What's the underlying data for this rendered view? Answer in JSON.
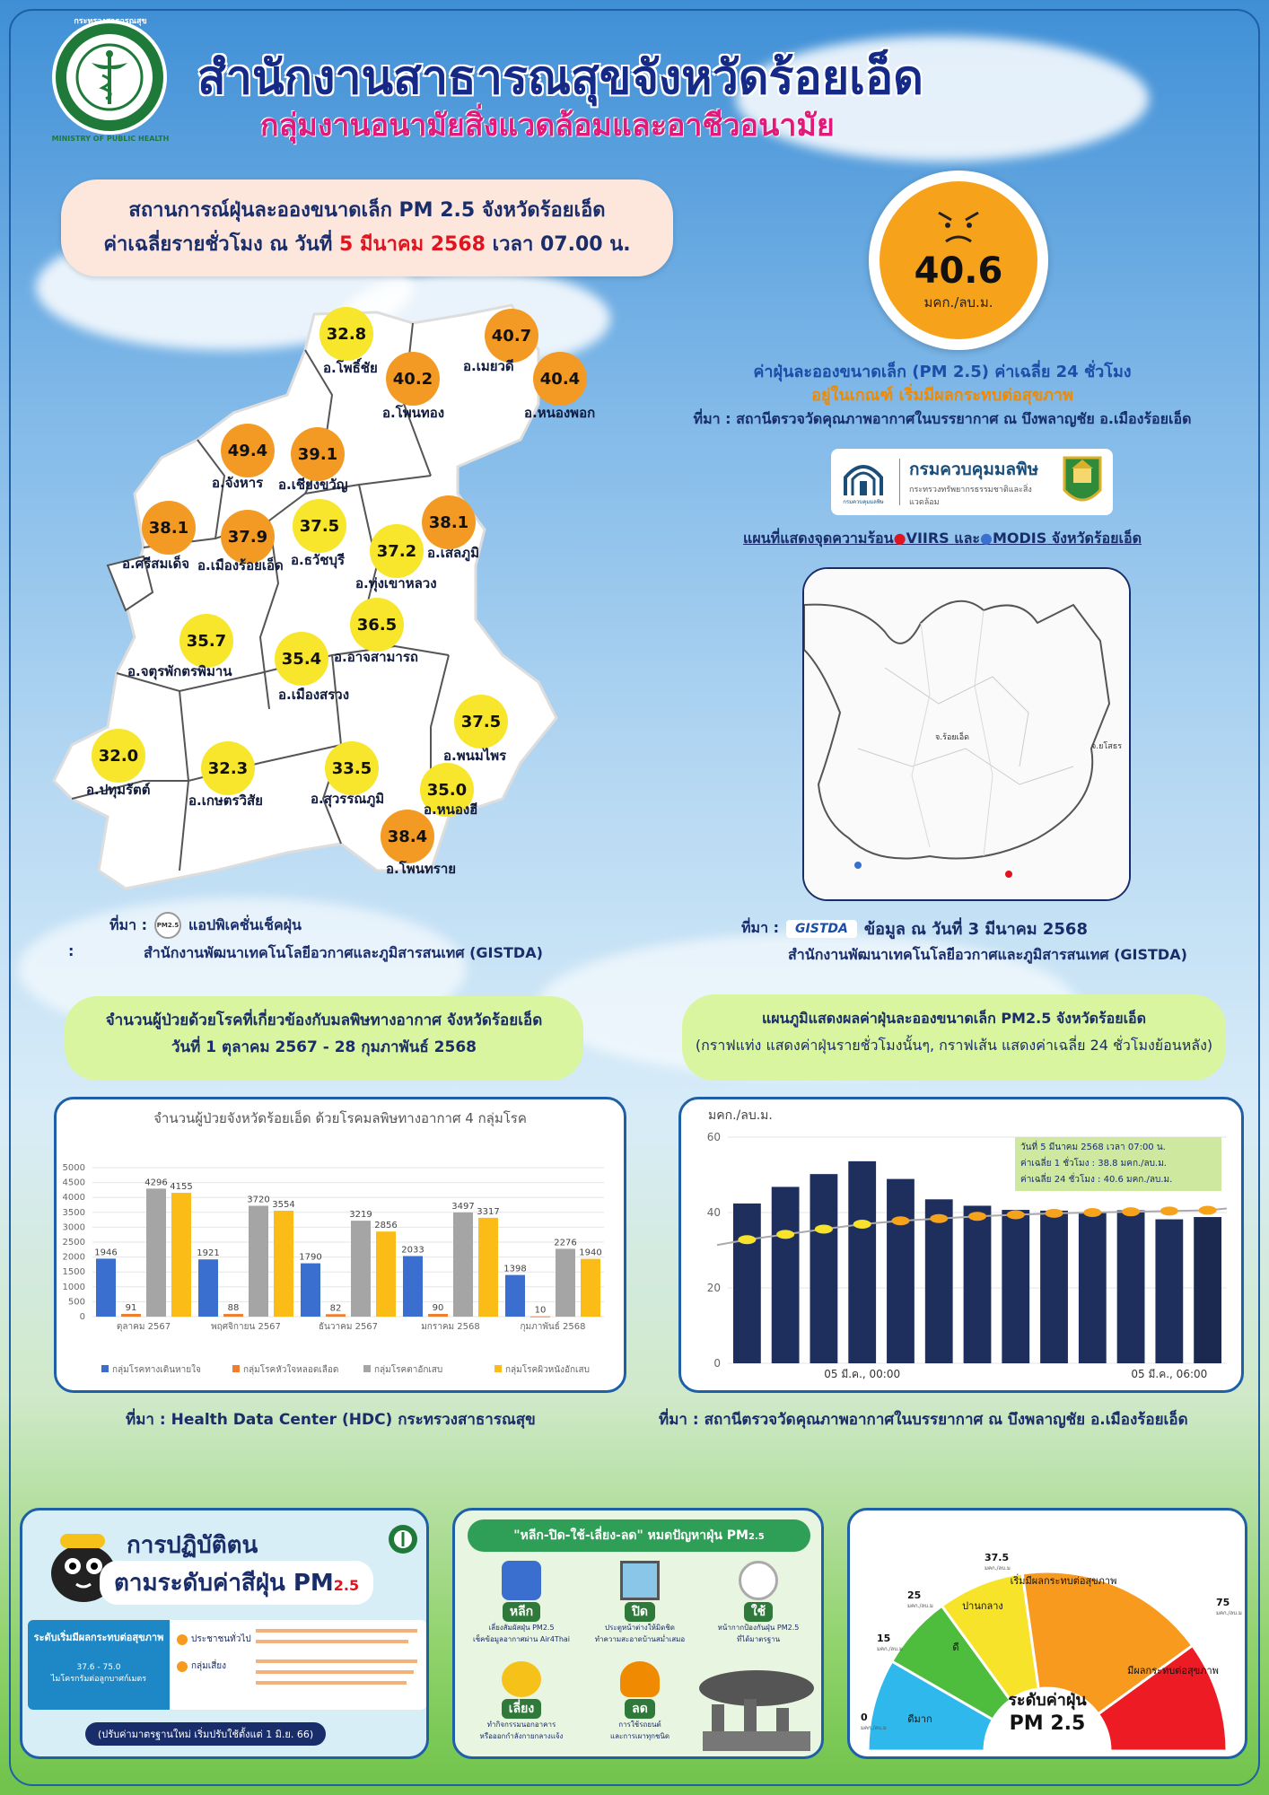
{
  "header": {
    "title": "สำนักงานสาธารณสุขจังหวัดร้อยเอ็ด",
    "subtitle": "กลุ่มงานอนามัยสิ่งแวดล้อมและอาชีวอนามัย",
    "logo_text_top": "กระทรวงสาธารณสุข",
    "logo_text_bottom": "MINISTRY OF PUBLIC HEALTH"
  },
  "situation": {
    "line1": "สถานการณ์ฝุ่นละอองขนาดเล็ก PM 2.5 จังหวัดร้อยเอ็ด",
    "line2_prefix": "ค่าเฉลี่ยรายชั่วโมง ณ วันที่ ",
    "line2_date": "5 มีนาคม 2568",
    "line2_suffix": " เวลา 07.00 น."
  },
  "current": {
    "value": "40.6",
    "unit": "มคก./ลบ.ม.",
    "desc1": "ค่าฝุ่นละอองขนาดเล็ก (PM 2.5) ค่าเฉลี่ย 24 ชั่วโมง",
    "desc2": "อยู่ในเกณฑ์ เริ่มมีผลกระทบต่อสุขภาพ",
    "source": "ที่มา : สถานีตรวจวัดคุณภาพอากาศในบรรยากาศ ณ บึงพลาญชัย อ.เมืองร้อยเอ็ด",
    "pcd_name": "กรมควบคุมมลพิษ",
    "pcd_sub": "กระทรวงทรัพยากรธรรมชาติและสิ่งแวดล้อม",
    "pcd_small": "กรมควบคุมมลพิษ"
  },
  "hotspot": {
    "title_prefix": "แผนที่แสดงจุดความร้อน",
    "viirs": "VIIRS",
    "and": " และ",
    "modis": "MODIS",
    "title_suffix": " จังหวัดร้อยเอ็ด",
    "map_label_province": "จ.ร้อยเอ็ด",
    "map_label_neighbor": "จ.ยโสธร",
    "source_prefix": "ที่มา :",
    "gistda_logo": "GISTDA",
    "source_date": "ข้อมูล ณ วันที่ 3 มีนาคม 2568",
    "source_org": "สำนักงานพัฒนาเทคโนโลยีอวกาศและภูมิสารสนเทศ (GISTDA)"
  },
  "districts": [
    {
      "name": "อ.โพธิ์ชัย",
      "value": "32.8",
      "color": "yel"
    },
    {
      "name": "อ.เมยวดี",
      "value": "40.7",
      "color": "org"
    },
    {
      "name": "อ.โพนทอง",
      "value": "40.2",
      "color": "org"
    },
    {
      "name": "อ.หนองพอก",
      "value": "40.4",
      "color": "org"
    },
    {
      "name": "อ.จังหาร",
      "value": "49.4",
      "color": "org"
    },
    {
      "name": "อ.เชียงขวัญ",
      "value": "39.1",
      "color": "org"
    },
    {
      "name": "อ.เสลภูมิ",
      "value": "38.1",
      "color": "org"
    },
    {
      "name": "อ.ศรีสมเด็จ",
      "value": "38.1",
      "color": "org"
    },
    {
      "name": "อ.เมืองร้อยเอ็ด",
      "value": "37.9",
      "color": "org"
    },
    {
      "name": "อ.ธวัชบุรี",
      "value": "37.5",
      "color": "yel"
    },
    {
      "name": "อ.ทุ่งเขาหลวง",
      "value": "37.2",
      "color": "yel"
    },
    {
      "name": "อ.อาจสามารถ",
      "value": "36.5",
      "color": "yel"
    },
    {
      "name": "อ.จตุรพักตรพิมาน",
      "value": "35.7",
      "color": "yel"
    },
    {
      "name": "อ.เมืองสรวง",
      "value": "35.4",
      "color": "yel"
    },
    {
      "name": "อ.พนมไพร",
      "value": "37.5",
      "color": "yel"
    },
    {
      "name": "อ.ปทุมรัตต์",
      "value": "32.0",
      "color": "yel"
    },
    {
      "name": "อ.เกษตรวิสัย",
      "value": "32.3",
      "color": "yel"
    },
    {
      "name": "อ.สุวรรณภูมิ",
      "value": "33.5",
      "color": "yel"
    },
    {
      "name": "อ.หนองฮี",
      "value": "35.0",
      "color": "yel"
    },
    {
      "name": "อ.โพนทราย",
      "value": "38.4",
      "color": "org"
    }
  ],
  "map_source": {
    "prefix": "ที่มา :",
    "app_icon": "PM2.5",
    "app": "แอปพิเคชั่นเช็คฝุ่น",
    "colon": ":",
    "org": "สำนักงานพัฒนาเทคโนโลยีอวกาศและภูมิสารสนเทศ (GISTDA)"
  },
  "patients": {
    "pill_line1": "จำนวนผู้ป่วยด้วยโรคที่เกี่ยวข้องกับมลพิษทางอากาศ จังหวัดร้อยเอ็ด",
    "pill_line2": "วันที่ 1 ตุลาคม 2567 - 28 กุมภาพันธ์ 2568",
    "source": "ที่มา :  Health Data Center (HDC) กระทรวงสาธารณสุข"
  },
  "pm_graph": {
    "pill_line1": "แผนภูมิแสดงผลค่าฝุ่นละอองขนาดเล็ก PM2.5 จังหวัดร้อยเอ็ด",
    "pill_line2": "(กราฟแท่ง แสดงค่าฝุ่นรายชั่วโมงนั้นๆ, กราฟเส้น แสดงค่าเฉลี่ย 24 ชั่วโมงย้อนหลัง)",
    "source": "ที่มา : สถานีตรวจวัดคุณภาพอากาศในบรรยากาศ ณ บึงพลาญชัย อ.เมืองร้อยเอ็ด",
    "info_line1": "วันที่  5    มีนาคม    2568  เวลา 07:00 น.",
    "info_line2": "ค่าเฉลี่ย 1 ชั่วโมง  :  38.8 มคก./ลบ.ม.",
    "info_line3": "ค่าเฉลี่ย 24 ชั่วโมง : 40.6 มคก./ลบ.ม."
  },
  "chart_data": [
    {
      "type": "bar",
      "title": "จำนวนผู้ป่วยจังหวัดร้อยเอ็ด ด้วยโรคมลพิษทางอากาศ 4 กลุ่มโรค",
      "categories": [
        "ตุลาคม 2567",
        "พฤศจิกายน 2567",
        "ธันวาคม 2567",
        "มกราคม 2568",
        "กุมภาพันธ์ 2568"
      ],
      "series": [
        {
          "name": "กลุ่มโรคทางเดินหายใจ",
          "color": "#3a6fd0",
          "values": [
            1946,
            1921,
            1790,
            2033,
            1398
          ]
        },
        {
          "name": "กลุ่มโรคหัวใจหลอดเลือด",
          "color": "#ef7d2d",
          "values": [
            91,
            88,
            82,
            90,
            10
          ]
        },
        {
          "name": "กลุ่มโรคตาอักเสบ",
          "color": "#a5a5a5",
          "values": [
            4296,
            3720,
            3219,
            3497,
            2276
          ]
        },
        {
          "name": "กลุ่มโรคผิวหนังอักเสบ",
          "color": "#fbbc18",
          "values": [
            4155,
            3554,
            2856,
            3317,
            1940
          ]
        }
      ],
      "yticks": [
        "0",
        "500",
        "1000",
        "1500",
        "2000",
        "2500",
        "3000",
        "3500",
        "4000",
        "4500",
        "5000"
      ],
      "ylim": [
        0,
        5000
      ],
      "legend": "bottom"
    },
    {
      "type": "bar+line",
      "ylabel": "มคก./ลบ.ม.",
      "ylim": [
        0,
        60
      ],
      "yticks": [
        "0",
        "20",
        "40",
        "60"
      ],
      "x_tick_labels": [
        "05 มี.ค., 00:00",
        "05 มี.ค., 06:00"
      ],
      "hourly": [
        42.4,
        46.8,
        50.2,
        53.6,
        48.9,
        43.5,
        41.8,
        40.7,
        40.5,
        40.1,
        40.6,
        38.2,
        38.8
      ],
      "avg24": [
        32.8,
        34.2,
        35.6,
        36.9,
        37.8,
        38.4,
        39.0,
        39.4,
        39.8,
        40.0,
        40.2,
        40.4,
        40.6
      ]
    },
    {
      "type": "gauge",
      "title": "ระดับค่าฝุ่น",
      "subtitle": "PM 2.5",
      "unit": "มคก./ลบ.ม",
      "tick_values": [
        "0",
        "15",
        "25",
        "37.5",
        "75"
      ],
      "bands": [
        {
          "label": "ดีมาก",
          "color": "#2fb8ec"
        },
        {
          "label": "ดี",
          "color": "#4ebd3d"
        },
        {
          "label": "ปานกลาง",
          "color": "#f6e32a"
        },
        {
          "label": "เริ่มมีผลกระทบต่อสุขภาพ",
          "color": "#f79a1d"
        },
        {
          "label": "มีผลกระทบต่อสุขภาพ",
          "color": "#ed1c24"
        }
      ]
    }
  ],
  "practice": {
    "title1": "การปฏิบัติตน",
    "title2": "ตามระดับค่าสีฝุ่น PM",
    "title2_sub": "2.5",
    "level_label": "ระดับเริ่มมีผลกระทบต่อสุขภาพ",
    "level_range": "37.6 - 75.0",
    "level_unit": "ไมโครกรัมต่อลูกบาศก์เมตร",
    "general_label": "ประชาชนทั่วไป",
    "risk_label": "กลุ่มเสี่ยง",
    "note": "(ปรับค่ามาตรฐานใหม่ เริ่มปรับใช้ตั้งแต่ 1 มิ.ย. 66)"
  },
  "campaign": {
    "title": "\"หลีก-ปิด-ใช้-เลี่ยง-ลด\" หมดปัญหาฝุ่น PM",
    "title_sub": "2.5",
    "items": [
      {
        "head": "หลีก",
        "text1": "เลี่ยงสัมผัสฝุ่น PM2.5",
        "text2": "เช็คข้อมูลอากาศผ่าน Air4Thai"
      },
      {
        "head": "ปิด",
        "text1": "ประตูหน้าต่างให้มิดชิด",
        "text2": "ทำความสะอาดบ้านสม่ำเสมอ"
      },
      {
        "head": "ใช้",
        "text1": "หน้ากากป้องกันฝุ่น PM2.5",
        "text2": "ที่ได้มาตรฐาน"
      },
      {
        "head": "เลี่ยง",
        "text1": "ทำกิจกรรมนอกอาคาร",
        "text2": "หรือออกกำลังกายกลางแจ้ง"
      },
      {
        "head": "ลด",
        "text1": "การใช้รถยนต์",
        "text2": "และการเผาทุกชนิด"
      }
    ]
  }
}
